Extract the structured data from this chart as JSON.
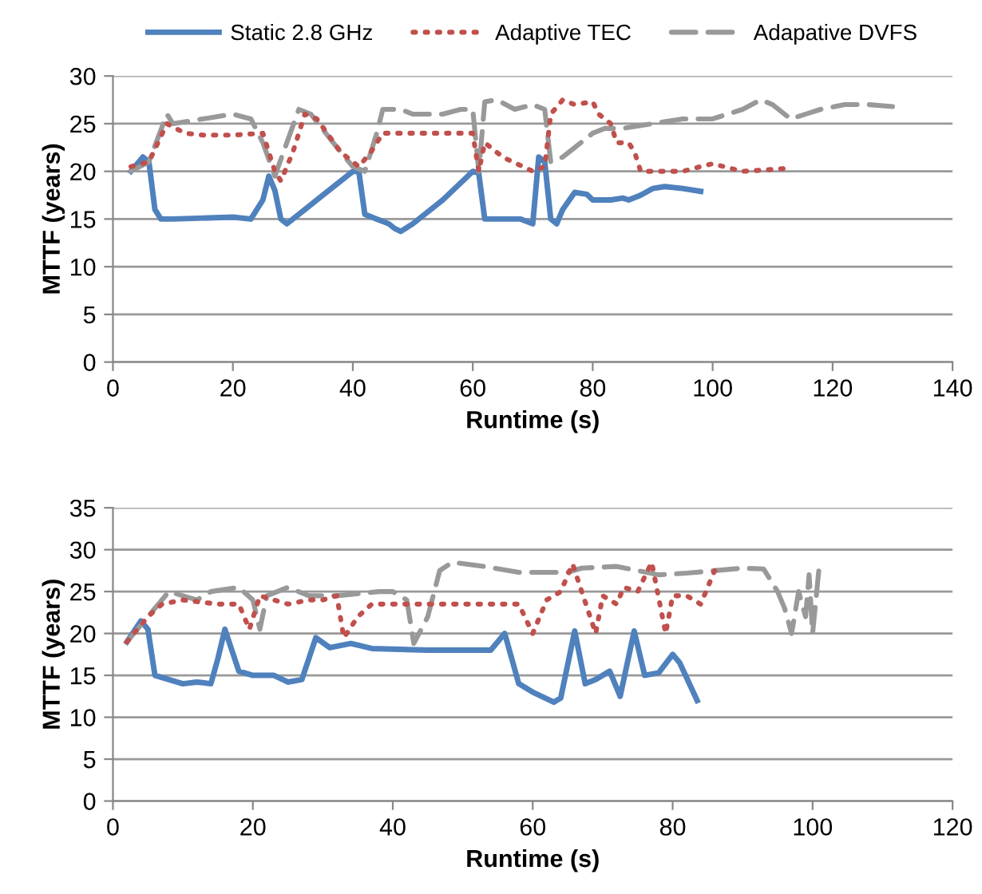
{
  "chart_data": [
    {
      "type": "line",
      "xlabel": "Runtime (s)",
      "ylabel": "MTTF (years)",
      "xlim": [
        0,
        140
      ],
      "xticks": [
        0,
        20,
        40,
        60,
        80,
        100,
        120,
        140
      ],
      "ylim": [
        0,
        30
      ],
      "yticks": [
        0,
        5,
        10,
        15,
        20,
        25,
        30
      ],
      "grid": "y",
      "legend": "top",
      "series": [
        {
          "name": "Static 2.8 GHz",
          "color": "#4f81bd",
          "line_style": "solid",
          "x": [
            3,
            5,
            6,
            7,
            8,
            10,
            20,
            23,
            25,
            26,
            27,
            28,
            29,
            31,
            35,
            40,
            41,
            42,
            44,
            46,
            47,
            48,
            50,
            55,
            60,
            61,
            62,
            66,
            68,
            70,
            71,
            72,
            73,
            74,
            75,
            77,
            79,
            80,
            83,
            85,
            86,
            88,
            90,
            92,
            95,
            98
          ],
          "values": [
            20,
            21.5,
            21,
            16,
            15,
            15,
            15.2,
            15,
            17,
            19.5,
            18,
            15,
            14.5,
            15.5,
            17.5,
            20,
            20,
            15.5,
            15,
            14.5,
            14,
            13.7,
            14.5,
            17,
            20,
            19.8,
            15,
            15,
            15,
            14.5,
            21.5,
            21,
            15,
            14.5,
            16,
            17.8,
            17.6,
            17,
            17,
            17.2,
            17,
            17.5,
            18.2,
            18.4,
            18.2,
            17.9
          ]
        },
        {
          "name": "Adaptive TEC",
          "color": "#c0504d",
          "line_style": "dotted",
          "x": [
            3,
            6,
            9,
            12,
            15,
            20,
            25,
            27,
            28,
            30,
            32,
            34,
            38,
            41,
            43,
            45,
            50,
            55,
            60,
            61,
            62,
            65,
            70,
            72,
            73,
            75,
            77,
            80,
            81,
            83,
            84,
            86,
            87,
            88,
            90,
            95,
            98,
            100,
            105,
            110,
            112
          ],
          "values": [
            20.5,
            21,
            25,
            24,
            23.8,
            23.8,
            24,
            20,
            19,
            22,
            26,
            25.5,
            22,
            20.5,
            22,
            24,
            24,
            24,
            24,
            20,
            23,
            21.5,
            20,
            20.5,
            26,
            27.5,
            27,
            27.3,
            26,
            25,
            23,
            23,
            22,
            20,
            20,
            20,
            20.5,
            20.8,
            20,
            20.2,
            20.3
          ]
        },
        {
          "name": "Adapative DVFS",
          "color": "#999999",
          "line_style": "dashed",
          "x": [
            3,
            6,
            9,
            10,
            15,
            20,
            23,
            25,
            27,
            29,
            31,
            33,
            38,
            40,
            42,
            44,
            45,
            48,
            50,
            55,
            58,
            60,
            61,
            62,
            64,
            67,
            70,
            72,
            73,
            75,
            78,
            80,
            82,
            85,
            90,
            95,
            100,
            105,
            108,
            110,
            113,
            118,
            122,
            126,
            130
          ],
          "values": [
            20,
            21,
            26,
            25,
            25.5,
            26,
            25.5,
            23,
            19.5,
            23,
            26.5,
            26,
            22,
            20.5,
            20,
            24,
            26.5,
            26.5,
            26,
            26,
            26.5,
            26.5,
            20,
            27.3,
            27.5,
            26.5,
            27,
            26.5,
            21,
            21.5,
            23,
            24,
            24.5,
            24.5,
            25,
            25.5,
            25.5,
            26.5,
            27.5,
            27,
            25.5,
            26.5,
            27,
            27,
            26.8
          ]
        }
      ]
    },
    {
      "type": "line",
      "xlabel": "Runtime (s)",
      "ylabel": "MTTF (years)",
      "xlim": [
        0,
        120
      ],
      "xticks": [
        0,
        20,
        40,
        60,
        80,
        100,
        120
      ],
      "ylim": [
        0,
        35
      ],
      "yticks": [
        0,
        5,
        10,
        15,
        20,
        25,
        30,
        35
      ],
      "grid": "y",
      "series": [
        {
          "color": "#4f81bd",
          "line_style": "solid",
          "x": [
            2,
            4,
            5,
            6,
            8,
            10,
            12,
            14,
            15,
            16,
            18,
            20,
            23,
            25,
            27,
            29,
            31,
            34,
            37,
            45,
            54,
            56,
            58,
            60,
            63,
            64,
            66,
            67.5,
            69,
            71,
            72.5,
            74.5,
            76,
            78,
            80,
            81,
            83.5
          ],
          "values": [
            19,
            21.5,
            20.5,
            15,
            14.5,
            14,
            14.2,
            14,
            17,
            20.5,
            15.5,
            15,
            15,
            14.2,
            14.5,
            19.5,
            18.3,
            18.8,
            18.2,
            18,
            18,
            20,
            14,
            13,
            11.8,
            12.3,
            20.3,
            14,
            14.5,
            15.5,
            12.5,
            20.3,
            15,
            15.3,
            17.5,
            16.5,
            12
          ]
        },
        {
          "color": "#c0504d",
          "line_style": "dotted",
          "x": [
            2,
            5,
            7,
            10,
            15,
            18,
            19.5,
            21,
            23,
            25,
            28,
            30,
            32,
            33,
            35,
            37,
            45,
            55,
            58,
            60,
            62,
            63,
            64,
            65.7,
            67,
            69,
            70,
            72,
            73,
            75,
            77,
            79,
            80,
            82,
            84,
            86
          ],
          "values": [
            19,
            22,
            23.5,
            24,
            23.5,
            23.5,
            20.5,
            24.5,
            24,
            23.5,
            24,
            24,
            24.5,
            19.5,
            22,
            23.5,
            23.5,
            23.5,
            23.5,
            20,
            24,
            24.5,
            25,
            28.3,
            25,
            20,
            24.5,
            23.5,
            25.5,
            25,
            28.5,
            20,
            24.5,
            24.5,
            23.5,
            27.5
          ]
        },
        {
          "color": "#999999",
          "line_style": "dashed",
          "x": [
            2,
            5,
            8,
            10,
            12,
            14,
            18,
            20,
            21,
            22,
            25,
            28,
            32,
            38,
            40,
            42,
            43,
            45,
            46.7,
            48.5,
            53,
            58,
            62,
            65,
            67,
            72,
            75,
            78,
            82,
            86,
            90,
            93,
            95,
            96,
            97,
            98,
            99,
            99.5,
            100,
            101
          ],
          "values": [
            19,
            22,
            25,
            24.5,
            24,
            25,
            25.5,
            24,
            20.5,
            24.5,
            25.5,
            24.5,
            24.5,
            25,
            25,
            24,
            18.8,
            22,
            27.5,
            28.5,
            28,
            27.3,
            27.3,
            27.3,
            27.8,
            28,
            27.5,
            27,
            27.2,
            27.5,
            27.8,
            27.7,
            25,
            23,
            20,
            25,
            22,
            27,
            20,
            28.5
          ]
        }
      ]
    }
  ]
}
